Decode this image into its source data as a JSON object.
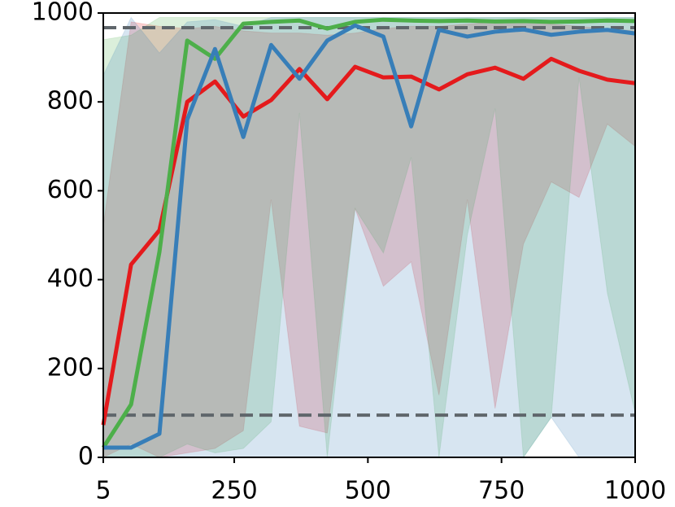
{
  "chart_data": {
    "type": "line",
    "x": [
      5,
      57,
      110,
      162,
      214,
      267,
      319,
      372,
      424,
      476,
      529,
      581,
      633,
      686,
      738,
      791,
      843,
      895,
      948,
      1000
    ],
    "series": [
      {
        "color": "#e41a1c",
        "values": [
          73,
          434,
          511,
          800,
          846,
          767,
          804,
          874,
          806,
          879,
          855,
          857,
          828,
          862,
          877,
          852,
          897,
          870,
          850,
          842
        ],
        "lower": [
          0,
          30,
          0,
          10,
          20,
          60,
          580,
          70,
          55,
          560,
          385,
          440,
          140,
          580,
          110,
          480,
          620,
          585,
          750,
          700
        ],
        "upper": [
          520,
          980,
          970,
          965,
          970,
          960,
          955,
          955,
          950,
          955,
          965,
          970,
          970,
          975,
          980,
          980,
          975,
          970,
          965,
          960
        ]
      },
      {
        "color": "#4daf4a",
        "values": [
          22,
          119,
          462,
          938,
          897,
          976,
          980,
          983,
          965,
          980,
          985,
          983,
          982,
          983,
          981,
          982,
          980,
          981,
          983,
          982
        ],
        "lower": [
          0,
          0,
          0,
          30,
          10,
          20,
          80,
          775,
          0,
          560,
          460,
          675,
          0,
          500,
          785,
          0,
          90,
          855,
          370,
          100
        ],
        "upper": [
          940,
          950,
          990,
          990,
          990,
          990,
          990,
          990,
          990,
          990,
          990,
          990,
          990,
          990,
          990,
          990,
          990,
          990,
          990,
          990
        ]
      },
      {
        "color": "#377eb8",
        "values": [
          22,
          22,
          53,
          760,
          919,
          721,
          928,
          852,
          938,
          972,
          947,
          745,
          962,
          947,
          958,
          963,
          951,
          958,
          962,
          954
        ],
        "lower": [
          0,
          0,
          0,
          0,
          0,
          0,
          0,
          0,
          0,
          0,
          0,
          0,
          0,
          0,
          0,
          0,
          90,
          0,
          0,
          0
        ],
        "upper": [
          860,
          990,
          910,
          980,
          985,
          970,
          990,
          990,
          990,
          990,
          990,
          990,
          990,
          990,
          990,
          990,
          990,
          990,
          990,
          990
        ]
      }
    ],
    "hlines": [
      967,
      95
    ],
    "hline_color": "#5f666b",
    "xlim": [
      5,
      1000
    ],
    "xticks": [
      5,
      250,
      500,
      750,
      1000
    ],
    "ylim": [
      0,
      1000
    ],
    "yticks": [
      0,
      200,
      400,
      600,
      800,
      1000
    ]
  }
}
